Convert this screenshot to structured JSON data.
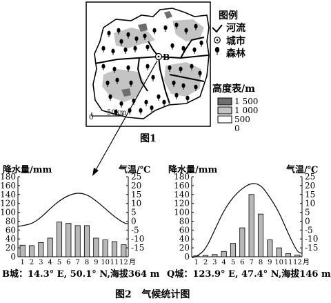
{
  "figure1": {
    "caption": "图1",
    "city_label": "B",
    "scale": {
      "zero": "0",
      "distance": "50km"
    },
    "legend": {
      "title": "图例",
      "river": "河流",
      "city": "城市",
      "forest": "森林"
    },
    "elevation_legend": {
      "title": "高度表/m",
      "levels": [
        "1 500",
        "1 000",
        "500",
        "0"
      ],
      "colors": [
        "#6e6e6e",
        "#c4c4c4",
        "#ffffff"
      ]
    }
  },
  "figure2": {
    "caption": "图2   气候统计图"
  },
  "chart_data": [
    {
      "type": "bar",
      "ylabel": "降水量/mm",
      "y2label": "气温/℃",
      "month_unit": "月",
      "categories": [
        "1",
        "2",
        "3",
        "4",
        "5",
        "6",
        "7",
        "8",
        "9",
        "10",
        "11",
        "12"
      ],
      "ylim": [
        0,
        180
      ],
      "yticks": [
        "0",
        "20",
        "40",
        "60",
        "80",
        "100",
        "120",
        "140",
        "160",
        "180"
      ],
      "y2lim": [
        -20,
        25
      ],
      "y2ticks": [
        "-15",
        "-10",
        "-5",
        "0",
        "5",
        "10",
        "15",
        "20",
        "25"
      ],
      "precipitation": [
        26,
        25,
        32,
        42,
        78,
        75,
        70,
        70,
        42,
        38,
        34,
        27
      ],
      "temperature": [
        -2.5,
        -1.5,
        2,
        7,
        11.5,
        14.5,
        16,
        15,
        11.5,
        7,
        2.5,
        -1
      ],
      "station": "B城：14.3° E, 50.1° N,海拔364 m"
    },
    {
      "type": "bar",
      "ylabel": "降水量/mm",
      "y2label": "气温/℃",
      "month_unit": "月",
      "categories": [
        "1",
        "2",
        "3",
        "4",
        "5",
        "6",
        "7",
        "8",
        "9",
        "10",
        "11",
        "12"
      ],
      "ylim": [
        0,
        180
      ],
      "yticks": [
        "0",
        "20",
        "40",
        "60",
        "80",
        "100",
        "120",
        "140",
        "160",
        "180"
      ],
      "y2lim": [
        -20,
        25
      ],
      "y2ticks": [
        "-15",
        "-10",
        "-5",
        "0",
        "5",
        "10",
        "15",
        "20",
        "25"
      ],
      "precipitation": [
        2,
        3,
        5,
        12,
        30,
        65,
        140,
        96,
        38,
        20,
        7,
        4
      ],
      "temperature": [
        -20,
        -16,
        -5,
        6,
        13.5,
        18.5,
        21.5,
        20.5,
        13.5,
        5,
        -7,
        -17.5
      ],
      "station": "Q城：123.9° E, 47.4° N,海拔146 m"
    }
  ]
}
